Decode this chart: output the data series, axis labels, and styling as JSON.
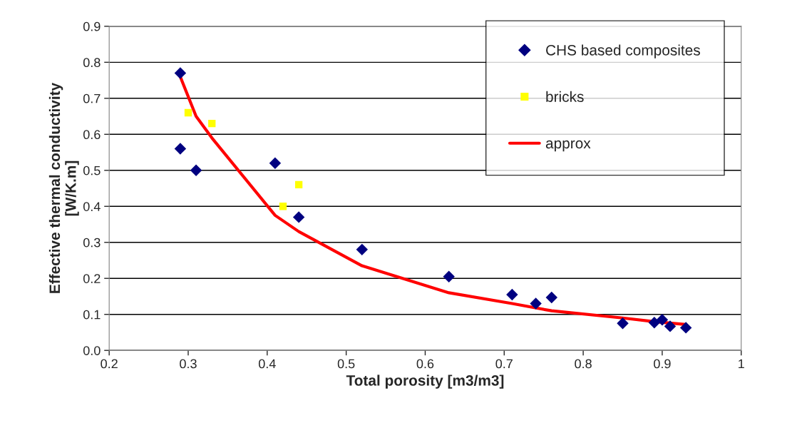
{
  "chart_data": {
    "type": "scatter",
    "xlabel": "Total porosity [m3/m3]",
    "ylabel": "Effective thermal conductivity\n[W/K.m]",
    "xlim": [
      0.2,
      1
    ],
    "xticks": [
      0.2,
      0.3,
      0.4,
      0.5,
      0.6,
      0.7,
      0.8,
      0.9,
      1
    ],
    "ylim": [
      0.0,
      0.9
    ],
    "yticks": [
      {
        "value": 0.0,
        "label": "0.0"
      },
      0.1,
      0.2,
      0.3,
      0.4,
      0.5,
      0.6,
      0.7,
      0.8,
      0.9
    ],
    "grid": "y",
    "legend": "top right",
    "series": [
      {
        "name": "CHS based composites",
        "type": "scatter",
        "marker": "diamond",
        "color": "#000080",
        "x": [
          0.29,
          0.29,
          0.31,
          0.41,
          0.44,
          0.52,
          0.63,
          0.71,
          0.74,
          0.76,
          0.85,
          0.89,
          0.9,
          0.91,
          0.93
        ],
        "values": [
          0.77,
          0.56,
          0.5,
          0.52,
          0.37,
          0.28,
          0.205,
          0.155,
          0.13,
          0.147,
          0.075,
          0.077,
          0.085,
          0.067,
          0.063
        ]
      },
      {
        "name": "bricks",
        "type": "scatter",
        "marker": "square",
        "color": "#ffff00",
        "x": [
          0.3,
          0.33,
          0.42,
          0.44
        ],
        "values": [
          0.66,
          0.63,
          0.4,
          0.46
        ]
      },
      {
        "name": "approx",
        "type": "line",
        "marker": "none",
        "color": "#ff0000",
        "x": [
          0.29,
          0.31,
          0.33,
          0.41,
          0.44,
          0.52,
          0.63,
          0.71,
          0.76,
          0.85,
          0.89,
          0.93
        ],
        "values": [
          0.76,
          0.65,
          0.59,
          0.375,
          0.33,
          0.235,
          0.16,
          0.13,
          0.11,
          0.09,
          0.08,
          0.072
        ]
      }
    ]
  }
}
